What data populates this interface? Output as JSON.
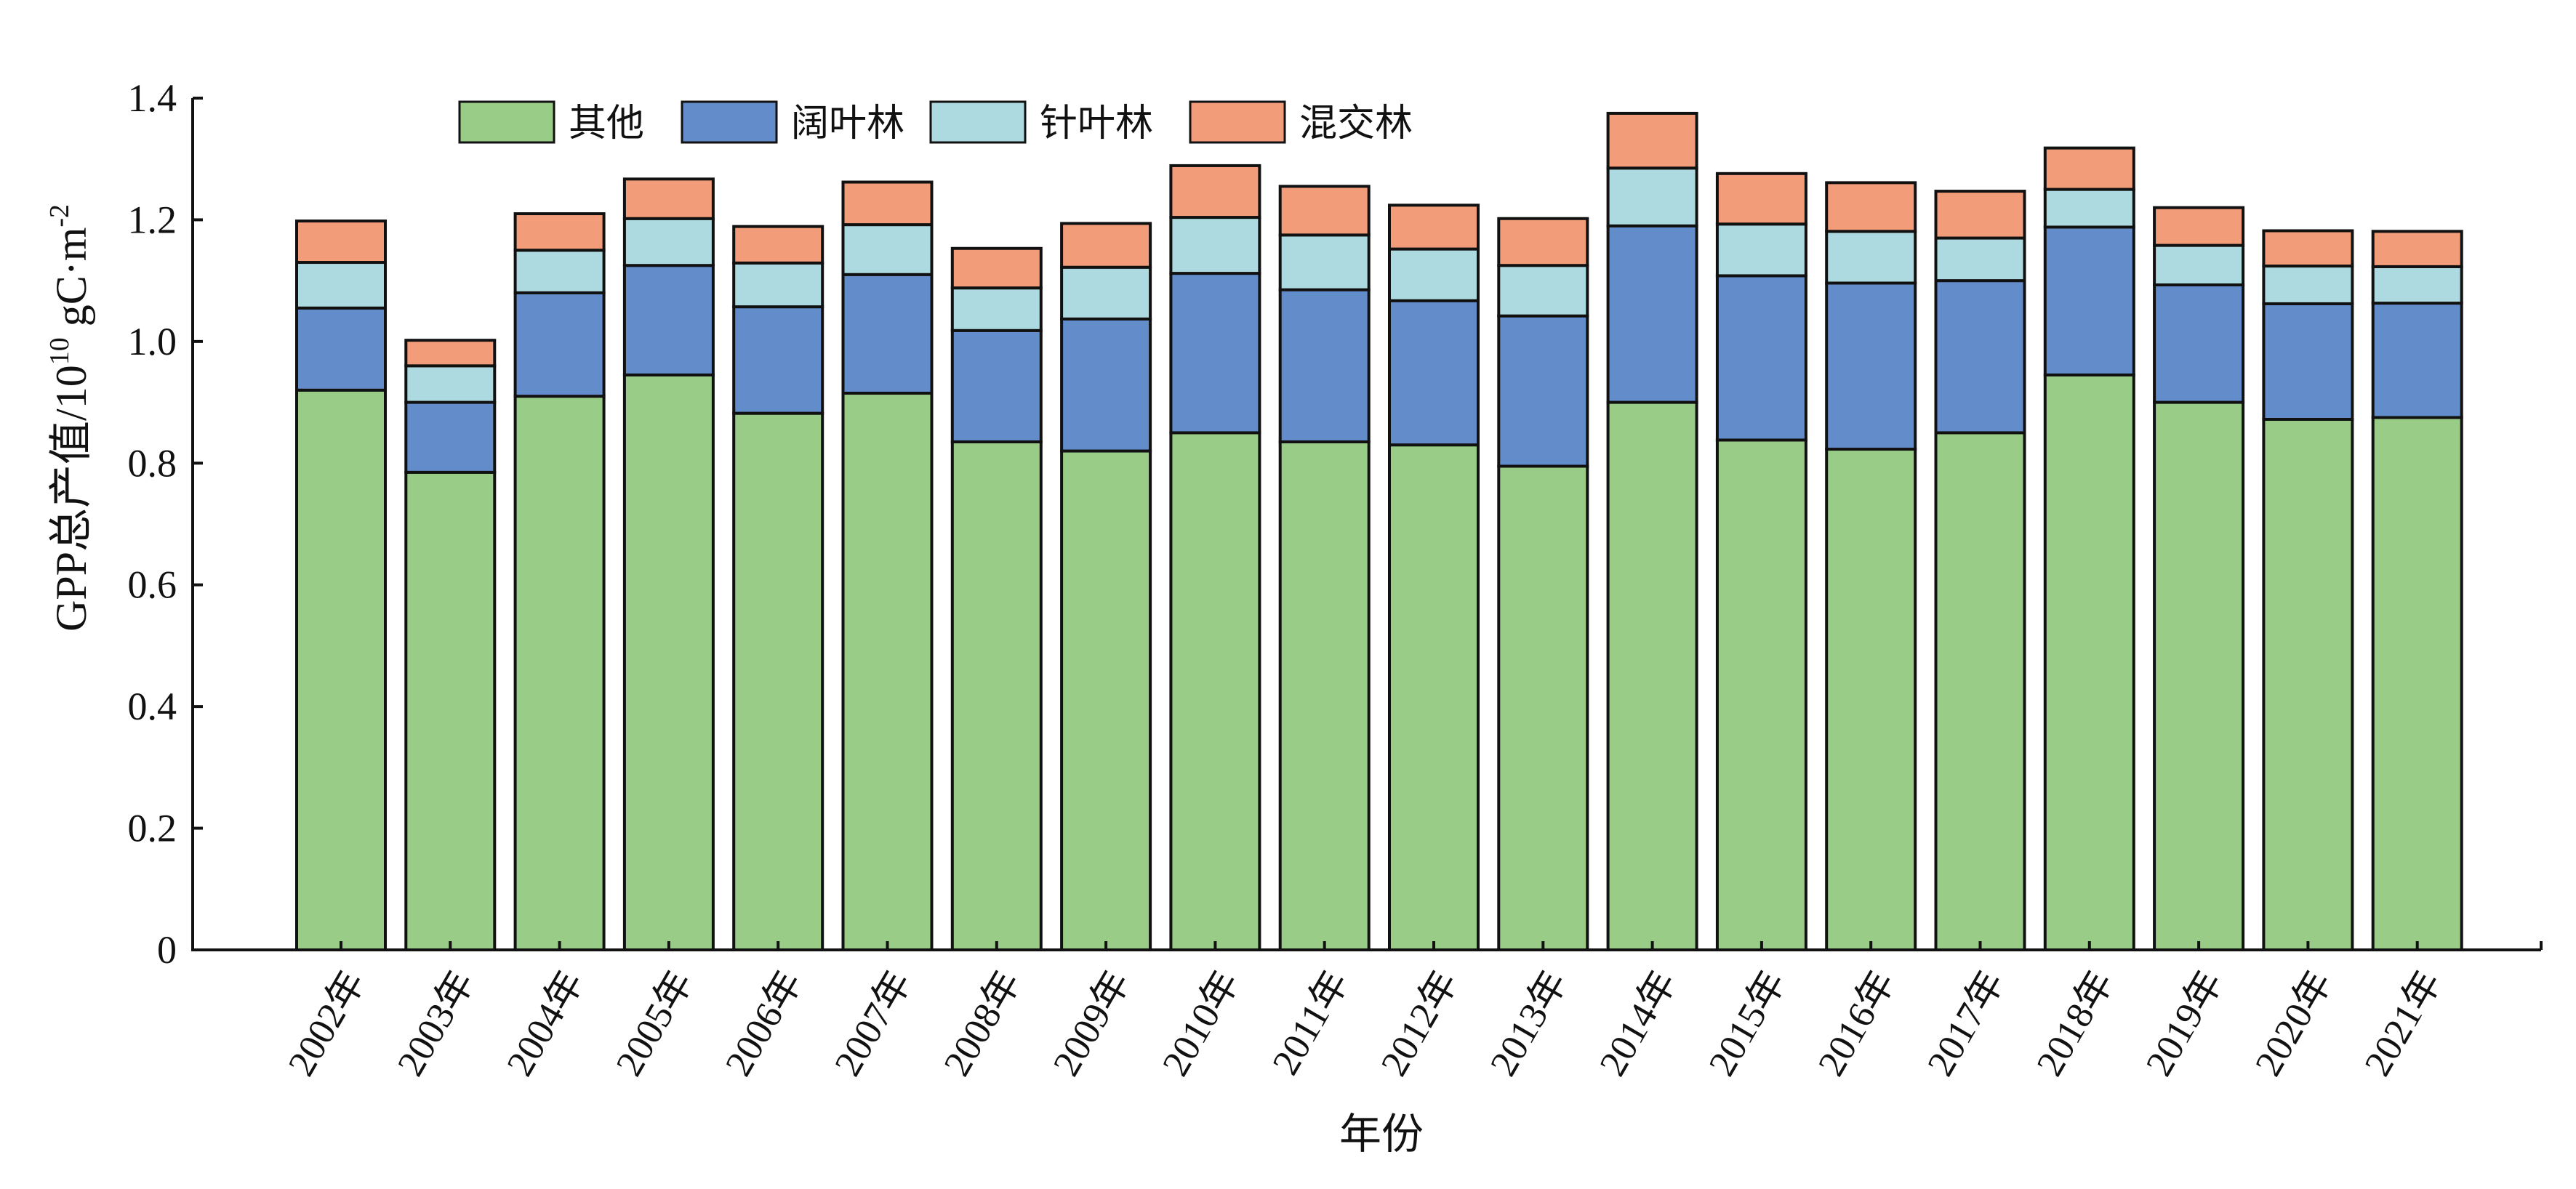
{
  "chart_data": {
    "type": "bar",
    "stacked": true,
    "title": "",
    "xlabel": "年份",
    "ylabel_main": "GPP总产值/10",
    "ylabel_sup1": "10",
    "ylabel_mid": " gC·m",
    "ylabel_sup2": "-2",
    "ylim": [
      0,
      1.4
    ],
    "yticks": [
      0,
      0.2,
      0.4,
      0.6,
      0.8,
      1.0,
      1.2,
      1.4
    ],
    "ytick_labels": [
      "0",
      "0.2",
      "0.4",
      "0.6",
      "0.8",
      "1.0",
      "1.2",
      "1.4"
    ],
    "grid": false,
    "legend_position": "top-left",
    "categories": [
      "2002年",
      "2003年",
      "2004年",
      "2005年",
      "2006年",
      "2007年",
      "2008年",
      "2009年",
      "2010年",
      "2011年",
      "2012年",
      "2013年",
      "2014年",
      "2015年",
      "2016年",
      "2017年",
      "2018年",
      "2019年",
      "2020年",
      "2021年"
    ],
    "series": [
      {
        "name": "其他",
        "color": "#98CC87",
        "values": [
          0.92,
          0.785,
          0.91,
          0.945,
          0.882,
          0.915,
          0.835,
          0.82,
          0.85,
          0.835,
          0.83,
          0.795,
          0.9,
          0.838,
          0.823,
          0.85,
          0.945,
          0.9,
          0.872,
          0.875
        ]
      },
      {
        "name": "阔叶林",
        "color": "#638CCB",
        "values": [
          0.135,
          0.115,
          0.17,
          0.18,
          0.175,
          0.195,
          0.183,
          0.217,
          0.262,
          0.25,
          0.237,
          0.247,
          0.29,
          0.27,
          0.273,
          0.25,
          0.243,
          0.193,
          0.19,
          0.188
        ]
      },
      {
        "name": "针叶林",
        "color": "#ADDAE0",
        "values": [
          0.075,
          0.06,
          0.07,
          0.077,
          0.072,
          0.082,
          0.07,
          0.085,
          0.092,
          0.09,
          0.085,
          0.083,
          0.095,
          0.085,
          0.085,
          0.07,
          0.062,
          0.065,
          0.062,
          0.06
        ]
      },
      {
        "name": "混交林",
        "color": "#F29C7A",
        "values": [
          0.068,
          0.042,
          0.06,
          0.065,
          0.06,
          0.07,
          0.065,
          0.072,
          0.085,
          0.08,
          0.072,
          0.077,
          0.09,
          0.083,
          0.08,
          0.077,
          0.068,
          0.062,
          0.058,
          0.058
        ]
      }
    ]
  }
}
